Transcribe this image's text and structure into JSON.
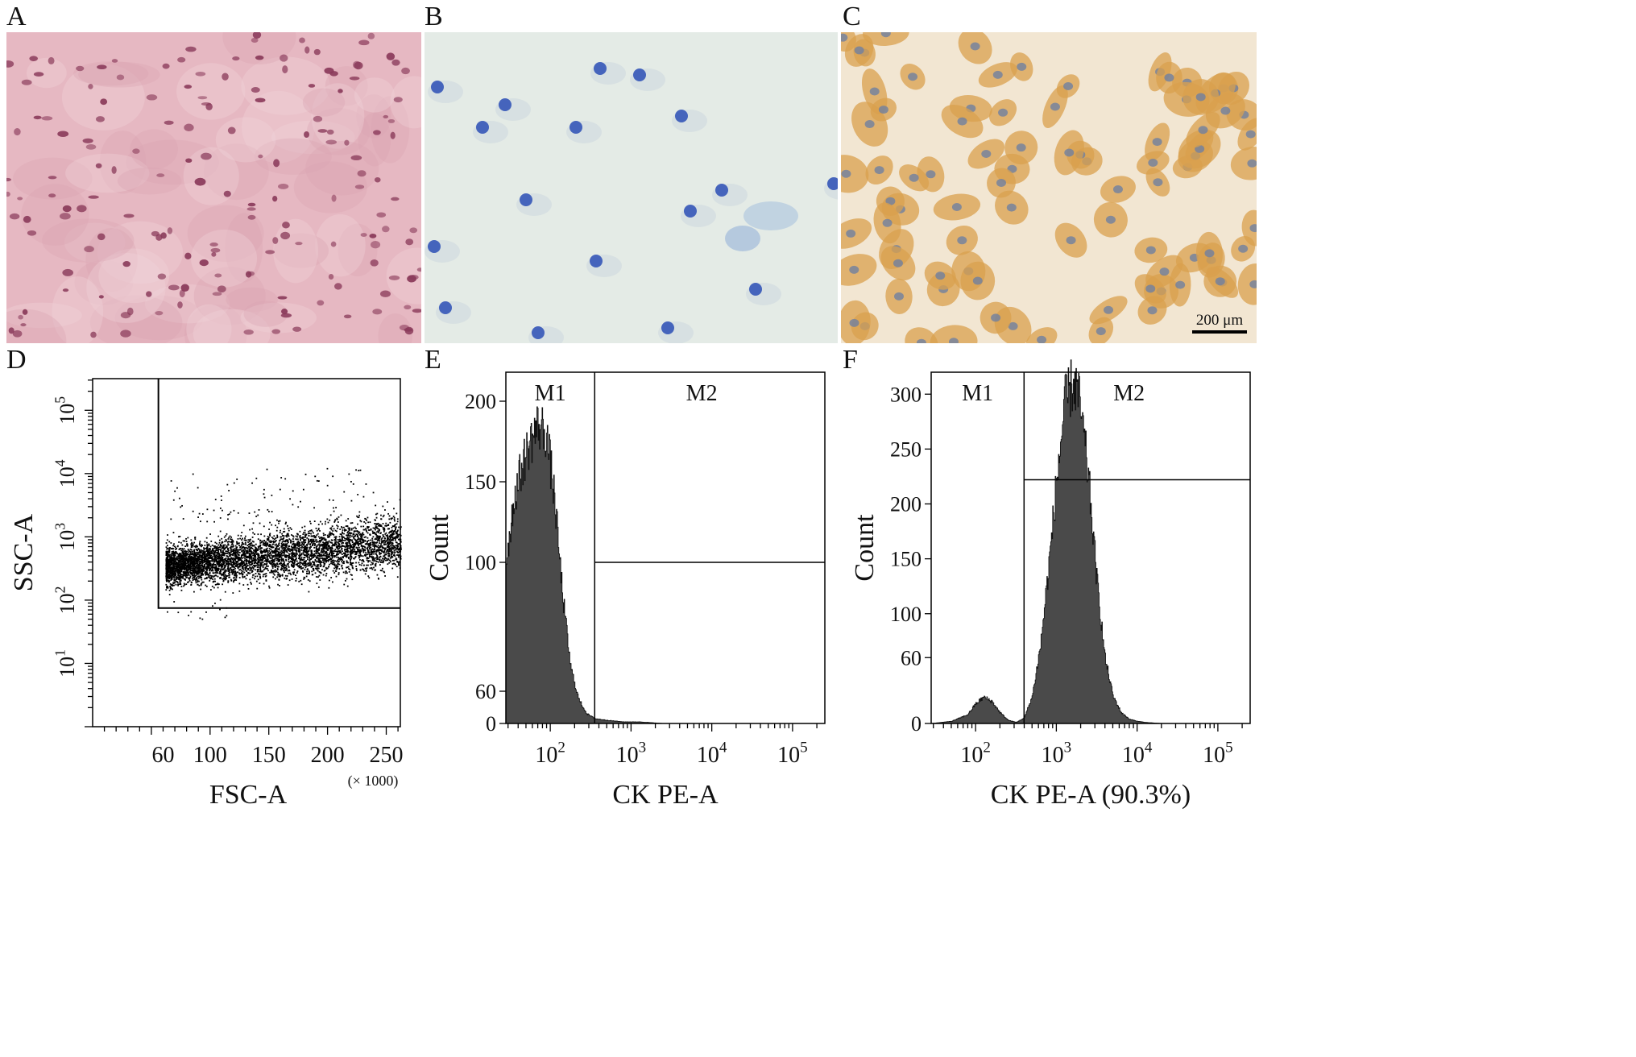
{
  "panels": {
    "a": {
      "letter": "A"
    },
    "b": {
      "letter": "B"
    },
    "c": {
      "letter": "C",
      "scale_bar": "200 μm"
    },
    "d": {
      "letter": "D"
    },
    "e": {
      "letter": "E"
    },
    "f": {
      "letter": "F"
    }
  },
  "colors": {
    "stain_a_bg": "#e6b8c2",
    "stain_a_nucleus": "#8a3a5a",
    "stain_b_bg": "#e4ebe6",
    "stain_b_nucleus": "#3557b8",
    "stain_c_bg": "#f2e6d2",
    "stain_c_cell": "#d9a04e",
    "stain_c_nucleus": "#6f7fa0",
    "histogram_fill": "#4a4a4a"
  },
  "chart_data": [
    {
      "id": "D",
      "type": "scatter",
      "xlabel": "FSC-A",
      "xunit": "(× 1000)",
      "ylabel": "SSC-A",
      "x_ticks": [
        "60",
        "100",
        "150",
        "200",
        "250"
      ],
      "y_ticks": [
        {
          "base": "10",
          "exp": "1"
        },
        {
          "base": "10",
          "exp": "2"
        },
        {
          "base": "10",
          "exp": "3"
        },
        {
          "base": "10",
          "exp": "4"
        },
        {
          "base": "10",
          "exp": "5"
        }
      ],
      "xlim": [
        0,
        262
      ],
      "y_log_range": [
        0,
        5.5
      ],
      "gate": {
        "x_min": 56,
        "x_max": 262,
        "y_min": 75,
        "y_max": 350000
      },
      "cloud": {
        "x_center_from": 80,
        "x_center_to": 250,
        "log_y_from": 2.55,
        "log_y_to": 2.9
      }
    },
    {
      "id": "E",
      "type": "area",
      "xlabel": "CK PE-A",
      "ylabel": "Count",
      "y_ticks": [
        "0",
        "60",
        "100",
        "150",
        "200"
      ],
      "x_ticks": [
        {
          "base": "10",
          "exp": "2"
        },
        {
          "base": "10",
          "exp": "3"
        },
        {
          "base": "10",
          "exp": "4"
        },
        {
          "base": "10",
          "exp": "5"
        }
      ],
      "x_log_range": [
        1.45,
        5.4
      ],
      "markers": [
        {
          "label": "M1",
          "from": 1.45,
          "to": 2.55,
          "level": 200
        },
        {
          "label": "M2",
          "from": 2.55,
          "to": 5.4,
          "level": 100
        }
      ],
      "series": [
        {
          "x_log": [
            1.45,
            1.55,
            1.65,
            1.75,
            1.85,
            1.95,
            2.05,
            2.15,
            2.25,
            2.35,
            2.45,
            2.55,
            2.7,
            2.9,
            3.1,
            3.4
          ],
          "counts": [
            100,
            140,
            160,
            175,
            185,
            180,
            140,
            80,
            35,
            15,
            6,
            3,
            2,
            1,
            1,
            0
          ]
        }
      ]
    },
    {
      "id": "F",
      "type": "area",
      "xlabel": "CK PE-A (90.3%)",
      "ylabel": "Count",
      "y_ticks": [
        "0",
        "60",
        "100",
        "150",
        "200",
        "250",
        "300"
      ],
      "x_ticks": [
        {
          "base": "10",
          "exp": "2"
        },
        {
          "base": "10",
          "exp": "3"
        },
        {
          "base": "10",
          "exp": "4"
        },
        {
          "base": "10",
          "exp": "5"
        }
      ],
      "x_log_range": [
        1.45,
        5.4
      ],
      "markers": [
        {
          "label": "M1",
          "from": 1.45,
          "to": 2.6,
          "level": 310
        },
        {
          "label": "M2",
          "from": 2.6,
          "to": 5.4,
          "level": 222
        }
      ],
      "series": [
        {
          "x_log": [
            1.45,
            1.7,
            1.9,
            2.0,
            2.1,
            2.2,
            2.3,
            2.4,
            2.5,
            2.6,
            2.7,
            2.8,
            2.9,
            3.0,
            3.1,
            3.2,
            3.25,
            3.3,
            3.4,
            3.5,
            3.6,
            3.7,
            3.8,
            3.9,
            4.0,
            4.1,
            4.3
          ],
          "counts": [
            0,
            2,
            8,
            18,
            24,
            20,
            10,
            3,
            1,
            5,
            25,
            70,
            140,
            220,
            290,
            310,
            305,
            285,
            220,
            130,
            60,
            25,
            10,
            4,
            2,
            1,
            0
          ]
        }
      ]
    }
  ]
}
